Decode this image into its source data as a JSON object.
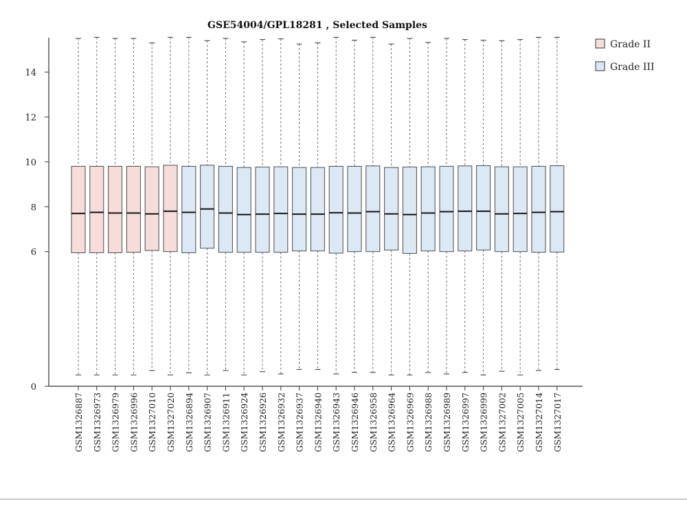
{
  "chart_data": {
    "type": "boxplot",
    "title": "GSE54004/GPL18281 , Selected Samples",
    "xlabel": "",
    "ylabel": "",
    "ylim": [
      0,
      15.5
    ],
    "y_ticks": [
      0,
      6,
      8,
      10,
      12,
      14
    ],
    "grid": false,
    "legend_position": "top-right",
    "legend": [
      {
        "name": "Grade II",
        "color": "#f6dcdb"
      },
      {
        "name": "Grade III",
        "color": "#dce8f4"
      }
    ],
    "colors": {
      "grade_ii": "#f6dcdb",
      "grade_iii": "#dce8f4",
      "box_stroke": "#4a4a4a",
      "whisker": "#6b6b6b",
      "axis": "#333333"
    },
    "samples": [
      {
        "label": "GSM1326887",
        "group": "Grade II",
        "min": 0.5,
        "q1": 5.95,
        "median": 7.7,
        "q3": 9.8,
        "max": 15.5
      },
      {
        "label": "GSM1326973",
        "group": "Grade II",
        "min": 0.5,
        "q1": 5.95,
        "median": 7.75,
        "q3": 9.8,
        "max": 15.55
      },
      {
        "label": "GSM1326979",
        "group": "Grade II",
        "min": 0.5,
        "q1": 5.95,
        "median": 7.72,
        "q3": 9.8,
        "max": 15.5
      },
      {
        "label": "GSM1326996",
        "group": "Grade II",
        "min": 0.5,
        "q1": 5.97,
        "median": 7.72,
        "q3": 9.8,
        "max": 15.5
      },
      {
        "label": "GSM1327010",
        "group": "Grade II",
        "min": 0.7,
        "q1": 6.05,
        "median": 7.68,
        "q3": 9.78,
        "max": 15.3
      },
      {
        "label": "GSM1327020",
        "group": "Grade II",
        "min": 0.5,
        "q1": 6.0,
        "median": 7.8,
        "q3": 9.85,
        "max": 15.55
      },
      {
        "label": "GSM1326894",
        "group": "Grade III",
        "min": 0.6,
        "q1": 5.95,
        "median": 7.75,
        "q3": 9.8,
        "max": 15.55
      },
      {
        "label": "GSM1326907",
        "group": "Grade III",
        "min": 0.5,
        "q1": 6.15,
        "median": 7.9,
        "q3": 9.85,
        "max": 15.4
      },
      {
        "label": "GSM1326911",
        "group": "Grade III",
        "min": 0.7,
        "q1": 5.97,
        "median": 7.72,
        "q3": 9.8,
        "max": 15.5
      },
      {
        "label": "GSM1326924",
        "group": "Grade III",
        "min": 0.5,
        "q1": 5.97,
        "median": 7.65,
        "q3": 9.75,
        "max": 15.35
      },
      {
        "label": "GSM1326926",
        "group": "Grade III",
        "min": 0.65,
        "q1": 5.97,
        "median": 7.67,
        "q3": 9.77,
        "max": 15.45
      },
      {
        "label": "GSM1326932",
        "group": "Grade III",
        "min": 0.55,
        "q1": 5.97,
        "median": 7.7,
        "q3": 9.78,
        "max": 15.48
      },
      {
        "label": "GSM1326937",
        "group": "Grade III",
        "min": 0.75,
        "q1": 6.03,
        "median": 7.67,
        "q3": 9.75,
        "max": 15.25
      },
      {
        "label": "GSM1326940",
        "group": "Grade III",
        "min": 0.75,
        "q1": 6.03,
        "median": 7.67,
        "q3": 9.75,
        "max": 15.3
      },
      {
        "label": "GSM1326943",
        "group": "Grade III",
        "min": 0.55,
        "q1": 5.93,
        "median": 7.73,
        "q3": 9.8,
        "max": 15.55
      },
      {
        "label": "GSM1326946",
        "group": "Grade III",
        "min": 0.62,
        "q1": 6.0,
        "median": 7.72,
        "q3": 9.8,
        "max": 15.42
      },
      {
        "label": "GSM1326958",
        "group": "Grade III",
        "min": 0.62,
        "q1": 6.0,
        "median": 7.78,
        "q3": 9.82,
        "max": 15.55
      },
      {
        "label": "GSM1326964",
        "group": "Grade III",
        "min": 0.5,
        "q1": 6.07,
        "median": 7.68,
        "q3": 9.75,
        "max": 15.25
      },
      {
        "label": "GSM1326969",
        "group": "Grade III",
        "min": 0.5,
        "q1": 5.92,
        "median": 7.65,
        "q3": 9.77,
        "max": 15.5
      },
      {
        "label": "GSM1326988",
        "group": "Grade III",
        "min": 0.62,
        "q1": 6.03,
        "median": 7.72,
        "q3": 9.78,
        "max": 15.32
      },
      {
        "label": "GSM1326989",
        "group": "Grade III",
        "min": 0.55,
        "q1": 6.0,
        "median": 7.78,
        "q3": 9.8,
        "max": 15.5
      },
      {
        "label": "GSM1326997",
        "group": "Grade III",
        "min": 0.62,
        "q1": 6.03,
        "median": 7.8,
        "q3": 9.82,
        "max": 15.45
      },
      {
        "label": "GSM1326999",
        "group": "Grade III",
        "min": 0.5,
        "q1": 6.07,
        "median": 7.8,
        "q3": 9.83,
        "max": 15.42
      },
      {
        "label": "GSM1327002",
        "group": "Grade III",
        "min": 0.67,
        "q1": 6.0,
        "median": 7.68,
        "q3": 9.78,
        "max": 15.4
      },
      {
        "label": "GSM1327005",
        "group": "Grade III",
        "min": 0.5,
        "q1": 6.0,
        "median": 7.7,
        "q3": 9.78,
        "max": 15.45
      },
      {
        "label": "GSM1327014",
        "group": "Grade III",
        "min": 0.7,
        "q1": 5.97,
        "median": 7.75,
        "q3": 9.8,
        "max": 15.55
      },
      {
        "label": "GSM1327017",
        "group": "Grade III",
        "min": 0.75,
        "q1": 5.98,
        "median": 7.78,
        "q3": 9.83,
        "max": 15.55
      }
    ]
  }
}
